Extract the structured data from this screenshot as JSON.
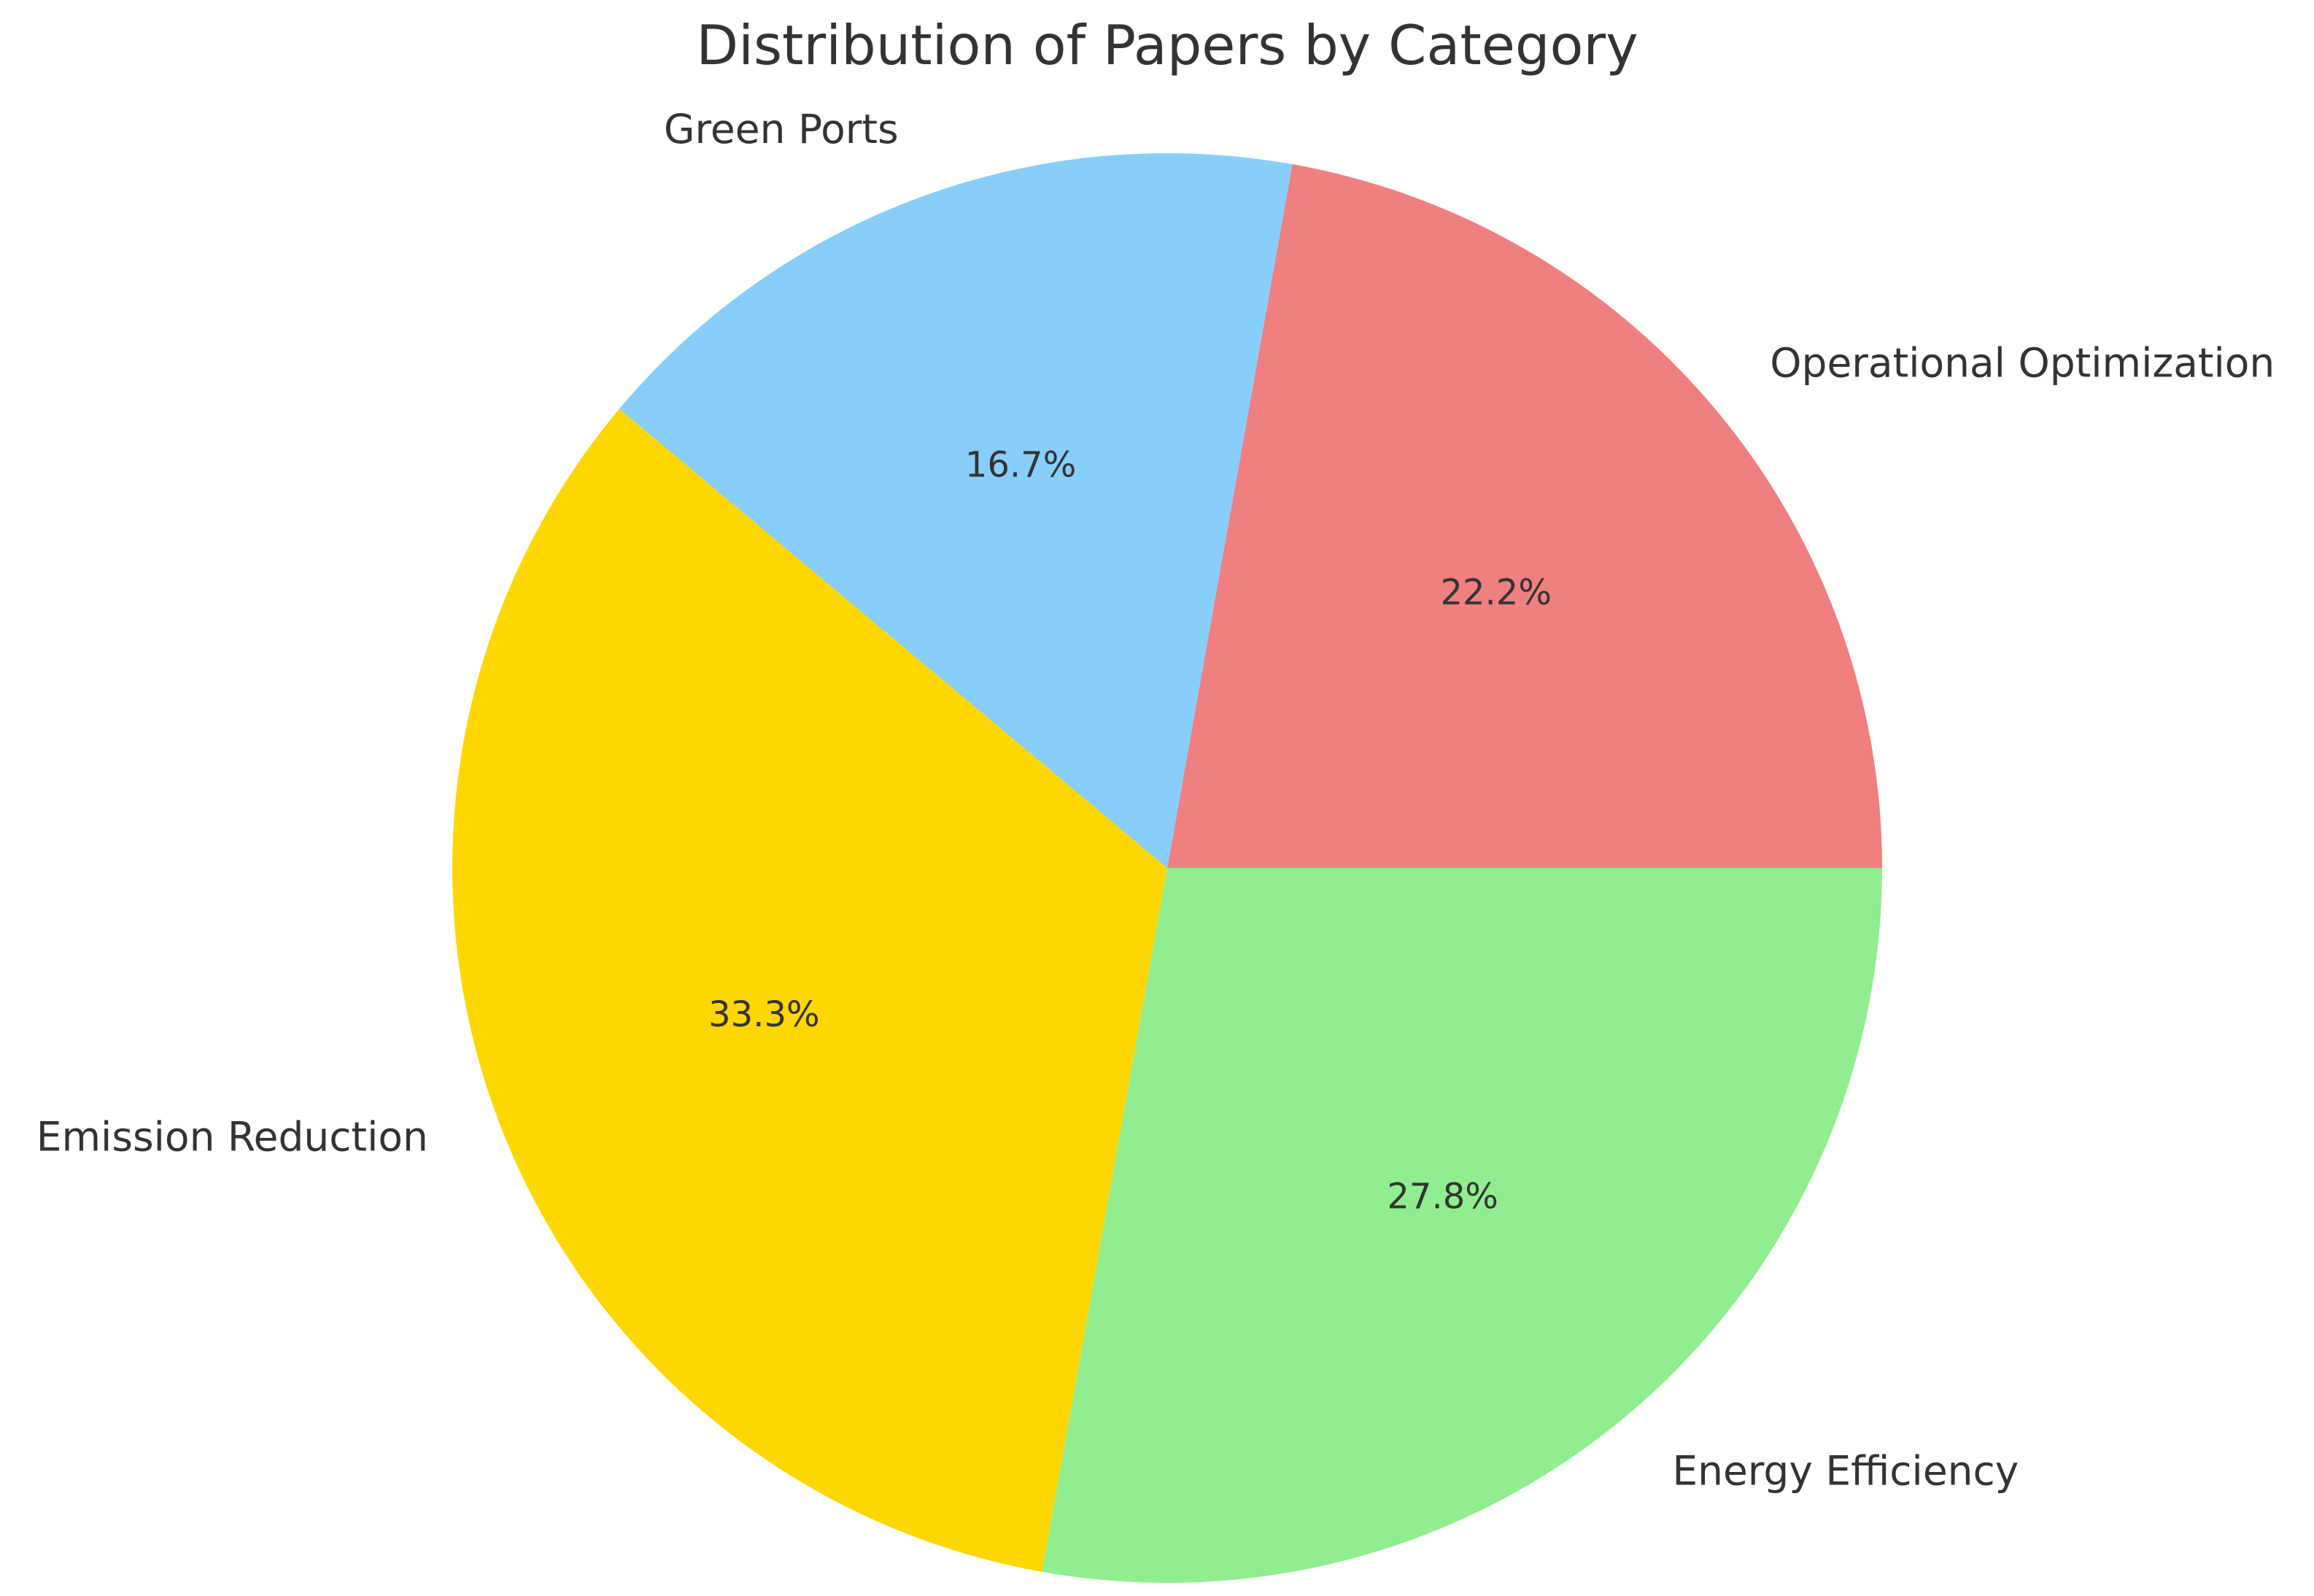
{
  "chart_data": {
    "type": "pie",
    "title": "Distribution of Papers by Category",
    "startangle": 0,
    "direction": "counterclockwise",
    "categories": [
      "Operational Optimization",
      "Green Ports",
      "Emission Reduction",
      "Energy Efficiency"
    ],
    "values": [
      22.2,
      16.7,
      33.3,
      27.8
    ],
    "value_labels": [
      "22.2%",
      "16.7%",
      "33.3%",
      "27.8%"
    ],
    "colors": [
      "#F08080",
      "#87CEFA",
      "#FFD700",
      "#90EE90"
    ]
  }
}
